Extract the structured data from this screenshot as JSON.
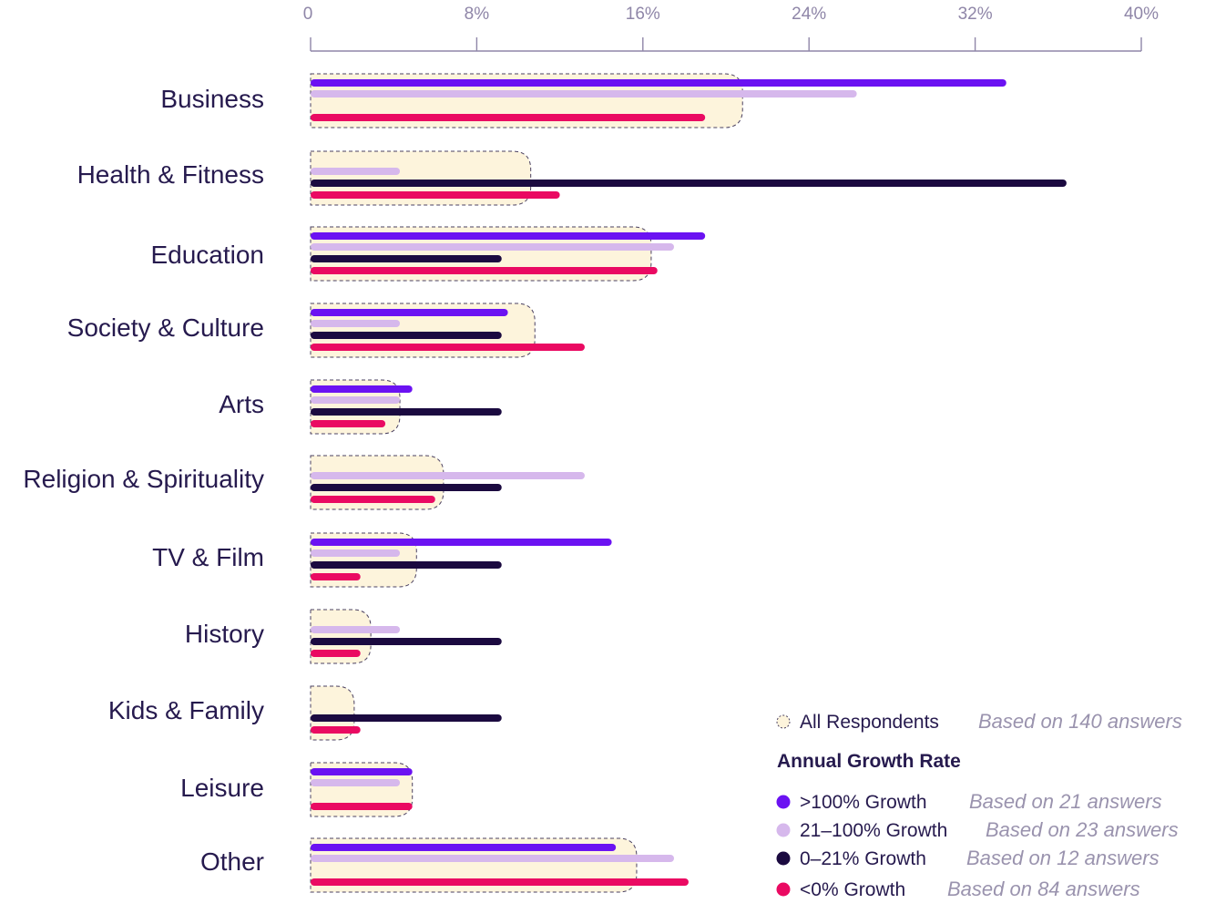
{
  "chart_data": {
    "type": "bar",
    "orientation": "horizontal",
    "x_ticks": [
      "0",
      "8%",
      "16%",
      "24%",
      "32%",
      "40%"
    ],
    "xlim": [
      0,
      40
    ],
    "categories": [
      "Business",
      "Health & Fitness",
      "Education",
      "Society & Culture",
      "Arts",
      "Religion & Spirituality",
      "TV & Film",
      "History",
      "Kids & Family",
      "Leisure",
      "Other"
    ],
    "all_respondents": {
      "name": "All Respondents",
      "note": "Based on 140 answers",
      "color": "#fdf4dc",
      "values": [
        20.8,
        10.6,
        16.4,
        10.8,
        4.3,
        6.4,
        5.1,
        2.9,
        2.1,
        4.9,
        15.7
      ]
    },
    "legend_title": "Annual Growth Rate",
    "legend_placement": "bottom-right",
    "series": [
      {
        "name": ">100% Growth",
        "note": "Based on 21 answers",
        "color": "#6b12f2",
        "values": [
          33.5,
          null,
          19.0,
          9.5,
          4.9,
          null,
          14.5,
          null,
          null,
          4.9,
          14.7
        ]
      },
      {
        "name": "21–100% Growth",
        "note": "Based on 23 answers",
        "color": "#d6b8ec",
        "values": [
          26.3,
          4.3,
          17.5,
          4.3,
          4.3,
          13.2,
          4.3,
          4.3,
          null,
          4.3,
          17.5
        ]
      },
      {
        "name": "0–21% Growth",
        "note": "Based on 12 answers",
        "color": "#1b0a40",
        "values": [
          null,
          36.4,
          9.2,
          9.2,
          9.2,
          9.2,
          9.2,
          9.2,
          9.2,
          null,
          null
        ]
      },
      {
        "name": "<0% Growth",
        "note": "Based on 84 answers",
        "color": "#ea0a62",
        "values": [
          19.0,
          12.0,
          16.7,
          13.2,
          3.6,
          6.0,
          2.4,
          2.4,
          2.4,
          4.9,
          18.2
        ]
      }
    ]
  }
}
